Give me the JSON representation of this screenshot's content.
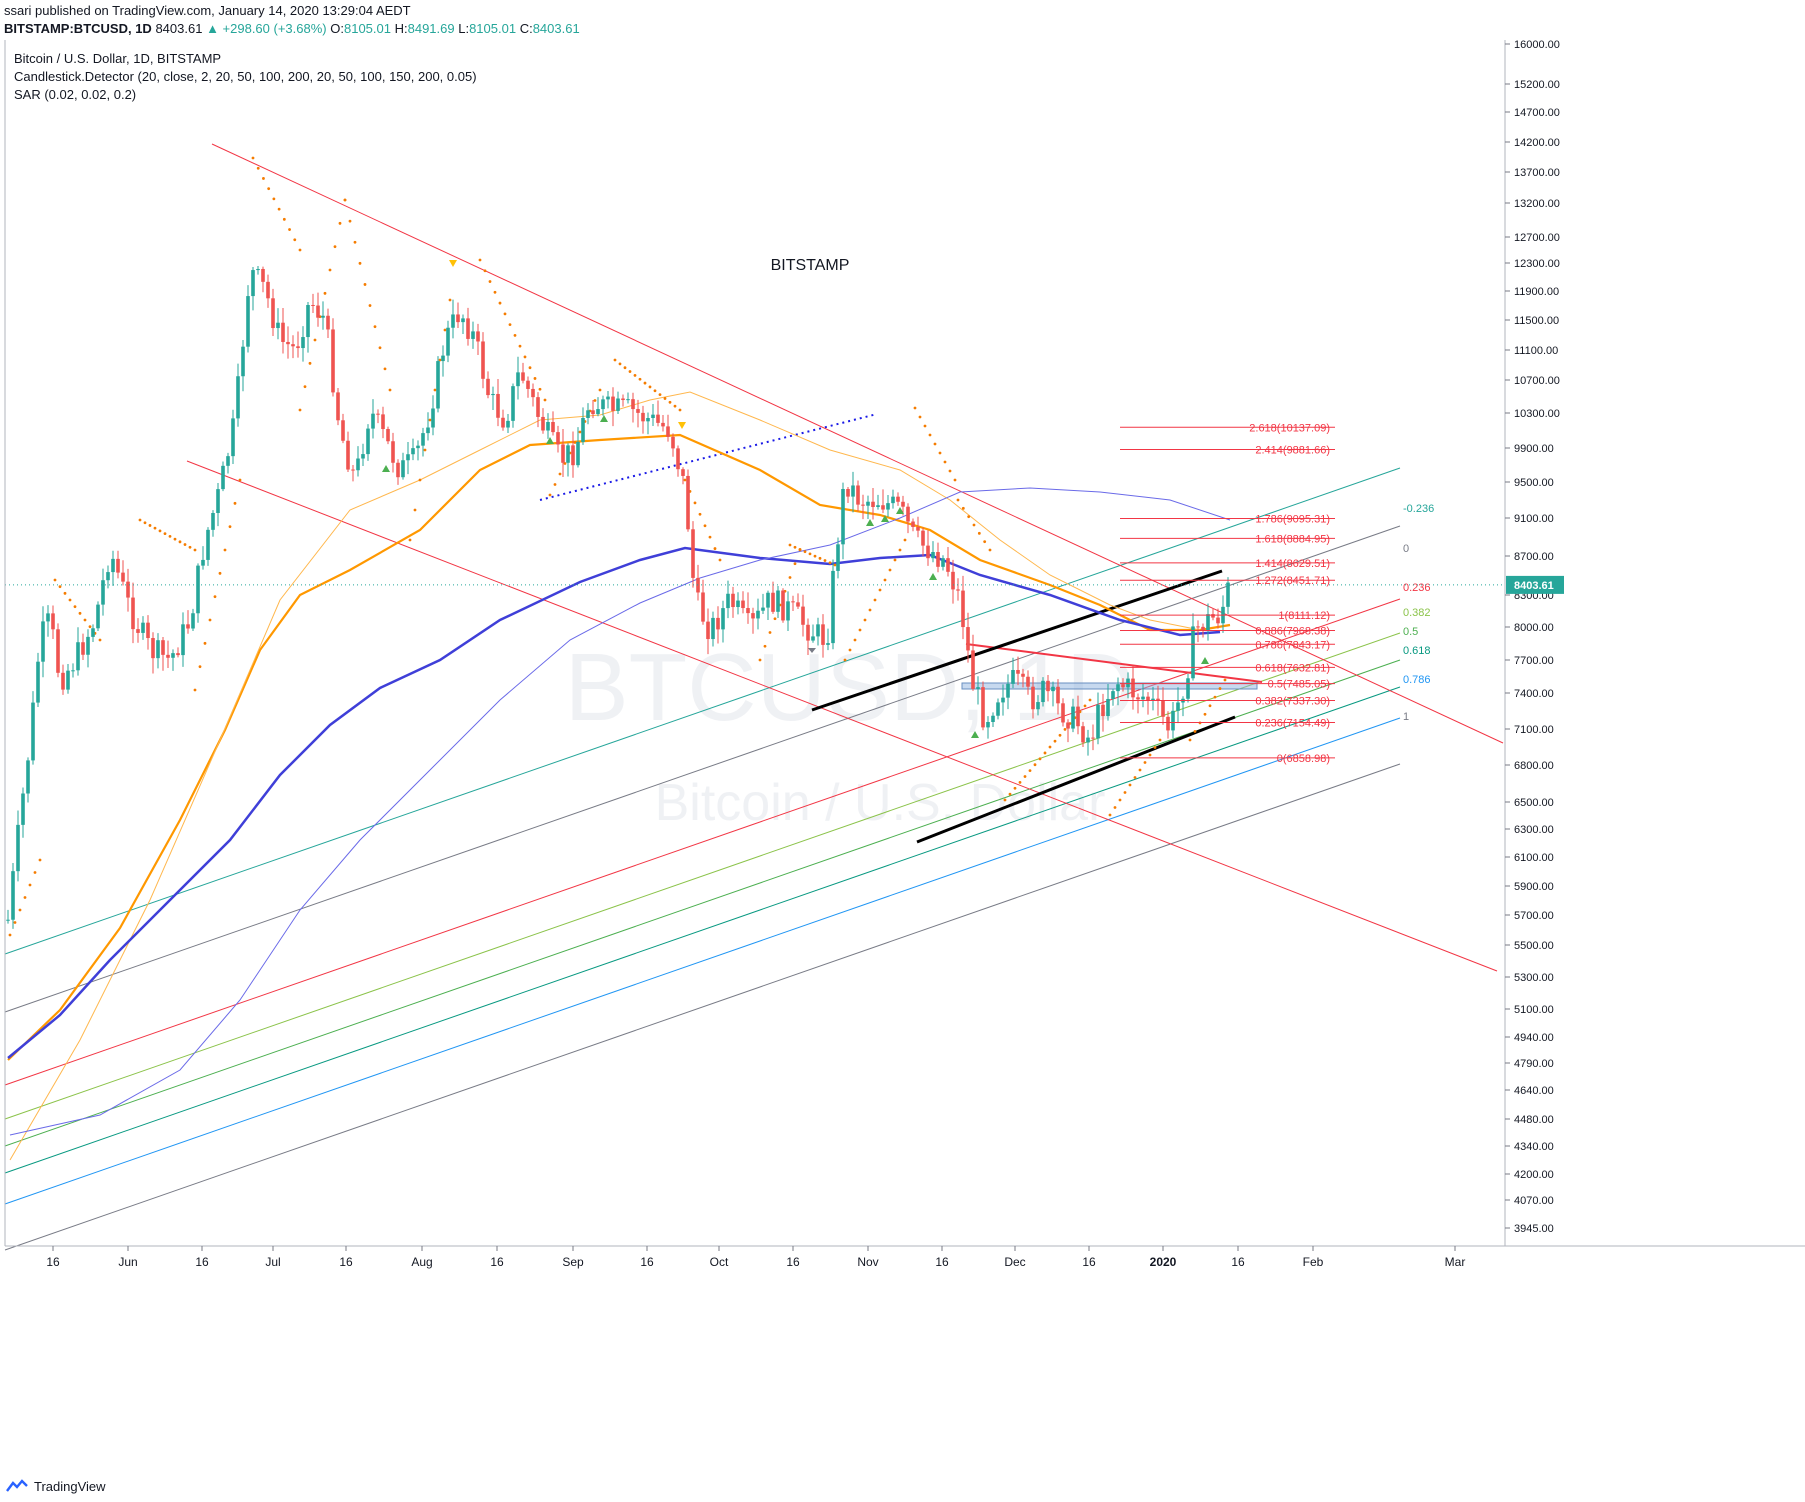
{
  "header": {
    "published": "ssari published on TradingView.com, January 14, 2020 13:29:04 AEDT",
    "symbol": "BITSTAMP:BTCUSD, 1D",
    "last": "8403.61",
    "change": "▲ +298.60 (+3.68%)",
    "o_label": "O:",
    "o_value": "8105.01",
    "h_label": "H:",
    "h_value": "8491.69",
    "l_label": "L:",
    "l_value": "8105.01",
    "c_label": "C:",
    "c_value": "8403.61"
  },
  "legend": {
    "title": "Bitcoin / U.S. Dollar, 1D, BITSTAMP",
    "indicator1": "Candlestick.Detector (20, close, 2, 20, 50, 100, 200, 20, 50, 100, 150, 200, 0.05)",
    "indicator2": "SAR (0.02, 0.02, 0.2)"
  },
  "annotation": "BITSTAMP",
  "watermark": {
    "line1": "BTCUSD, 1D",
    "line2": "Bitcoin / U.S. Dollar"
  },
  "footer": {
    "brand": "TradingView"
  },
  "colors": {
    "up": "#26a69a",
    "down": "#ef5350",
    "sar": "#f57c00",
    "ma50": "#ff9800",
    "ma100": "#ffb74d",
    "ma200": "#3f3fd8",
    "ma200b": "#6a6ae8",
    "trend": "#f23645",
    "channel": "#000000",
    "dotted": "#1a1ae6"
  },
  "chart_data": {
    "type": "candlestick",
    "price_axis": [
      "16000.00",
      "15200.00",
      "14700.00",
      "14200.00",
      "13700.00",
      "13200.00",
      "12700.00",
      "12300.00",
      "11900.00",
      "11500.00",
      "11100.00",
      "10700.00",
      "10300.00",
      "9900.00",
      "9500.00",
      "9100.00",
      "8700.00",
      "8300.00",
      "8000.00",
      "7700.00",
      "7400.00",
      "7100.00",
      "6800.00",
      "6500.00",
      "6300.00",
      "6100.00",
      "5900.00",
      "5700.00",
      "5500.00",
      "5300.00",
      "5100.00",
      "4940.00",
      "4790.00",
      "4640.00",
      "4480.00",
      "4340.00",
      "4200.00",
      "4070.00",
      "3945.00"
    ],
    "time_axis": [
      "16",
      "Jun",
      "16",
      "Jul",
      "16",
      "Aug",
      "16",
      "Sep",
      "16",
      "Oct",
      "16",
      "Nov",
      "16",
      "Dec",
      "16",
      "2020",
      "16",
      "Feb",
      "Mar"
    ],
    "last_price": "8403.61",
    "fib_extension": [
      {
        "label": "2.618(10137.09)",
        "value": 10137.09
      },
      {
        "label": "2.414(9881.66)",
        "value": 9881.66
      },
      {
        "label": "1.786(9095.31)",
        "value": 9095.31
      },
      {
        "label": "1.618(8884.95)",
        "value": 8884.95
      },
      {
        "label": "1.414(8629.51)",
        "value": 8629.51
      },
      {
        "label": "1.272(8451.71)",
        "value": 8451.71
      },
      {
        "label": "1(8111.12)",
        "value": 8111.12
      },
      {
        "label": "0.886(7968.38)",
        "value": 7968.38
      },
      {
        "label": "0.786(7843.17)",
        "value": 7843.17
      },
      {
        "label": "0.618(7632.81)",
        "value": 7632.81
      },
      {
        "label": "0.5(7485.05)",
        "value": 7485.05
      },
      {
        "label": "0.382(7337.30)",
        "value": 7337.3
      },
      {
        "label": "0.236(7154.49)",
        "value": 7154.49
      },
      {
        "label": "0(6858.98)",
        "value": 6858.98
      }
    ],
    "fib_channel": [
      {
        "label": "-0.236",
        "color": "#26a69a"
      },
      {
        "label": "0",
        "color": "#787b86"
      },
      {
        "label": "0.236",
        "color": "#f23645"
      },
      {
        "label": "0.382",
        "color": "#8bc34a"
      },
      {
        "label": "0.5",
        "color": "#4caf50"
      },
      {
        "label": "0.618",
        "color": "#089981"
      },
      {
        "label": "0.786",
        "color": "#2196f3"
      },
      {
        "label": "1",
        "color": "#787b86"
      }
    ]
  }
}
